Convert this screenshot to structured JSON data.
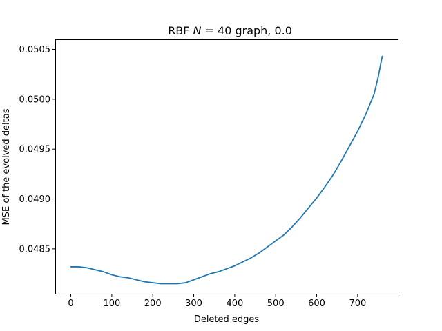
{
  "chart_data": {
    "type": "line",
    "title_parts": {
      "prefix": "RBF ",
      "var": "N",
      "suffix": " = 40 graph, 0.0"
    },
    "xlabel": "Deleted edges",
    "ylabel": "MSE of the evolved deltas",
    "xlim": [
      -38,
      798
    ],
    "ylim": [
      0.04805,
      0.0506
    ],
    "xticks": [
      0,
      100,
      200,
      300,
      400,
      500,
      600,
      700
    ],
    "xtick_labels": [
      "0",
      "100",
      "200",
      "300",
      "400",
      "500",
      "600",
      "700"
    ],
    "yticks": [
      0.0485,
      0.049,
      0.0495,
      0.05,
      0.0505
    ],
    "ytick_labels": [
      "0.0485",
      "0.0490",
      "0.0495",
      "0.0500",
      "0.0505"
    ],
    "grid": false,
    "series": [
      {
        "color": "#1f77b4",
        "x": [
          0,
          20,
          40,
          60,
          80,
          100,
          120,
          140,
          160,
          180,
          200,
          220,
          240,
          260,
          280,
          300,
          320,
          340,
          360,
          380,
          400,
          420,
          440,
          460,
          480,
          500,
          520,
          540,
          560,
          580,
          600,
          620,
          640,
          660,
          680,
          700,
          720,
          740,
          750,
          760
        ],
        "y": [
          0.04832,
          0.04832,
          0.04831,
          0.04829,
          0.04827,
          0.04824,
          0.04822,
          0.04821,
          0.04819,
          0.04817,
          0.04816,
          0.04815,
          0.04815,
          0.04815,
          0.04816,
          0.04819,
          0.04822,
          0.04825,
          0.04827,
          0.0483,
          0.04833,
          0.04837,
          0.04841,
          0.04846,
          0.04852,
          0.04858,
          0.04864,
          0.04872,
          0.04881,
          0.04891,
          0.04901,
          0.04912,
          0.04924,
          0.04938,
          0.04953,
          0.04968,
          0.04985,
          0.05005,
          0.05022,
          0.05043
        ]
      }
    ]
  }
}
